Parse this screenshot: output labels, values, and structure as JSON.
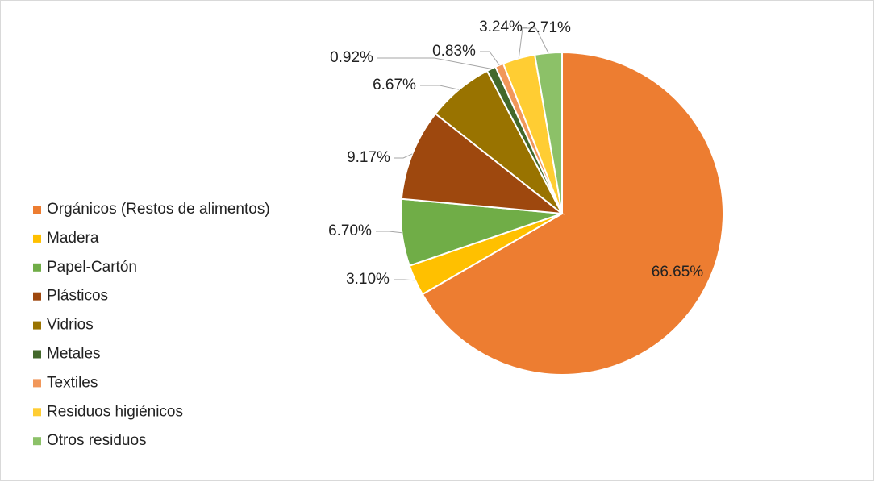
{
  "chart_data": {
    "type": "pie",
    "categories": [
      "Orgánicos (Restos de alimentos)",
      "Madera",
      "Papel-Cartón",
      "Plásticos",
      "Vidrios",
      "Metales",
      "Textiles",
      "Residuos higiénicos",
      "Otros residuos"
    ],
    "values": [
      66.65,
      3.1,
      6.7,
      9.17,
      6.67,
      0.92,
      0.83,
      3.24,
      2.71
    ],
    "value_labels": [
      "66.65%",
      "3.10%",
      "6.70%",
      "9.17%",
      "6.67%",
      "0.92%",
      "0.83%",
      "3.24%",
      "2.71%"
    ],
    "colors": [
      "#ED7D31",
      "#FFC000",
      "#70AD47",
      "#9E480E",
      "#997300",
      "#43682B",
      "#F1975A",
      "#FFCD33",
      "#8CC168"
    ],
    "legend": "left"
  }
}
